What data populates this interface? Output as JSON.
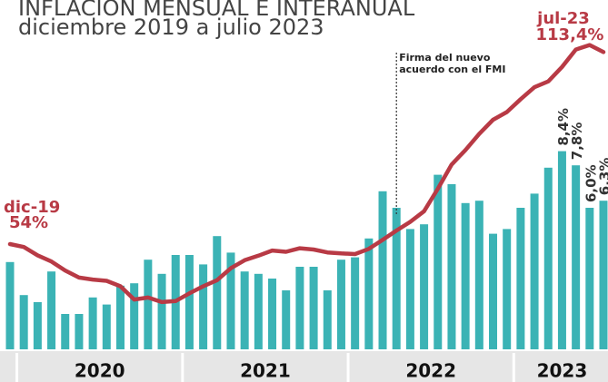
{
  "chart_data": {
    "type": "bar_line",
    "title": "INFLACIÓN MENSUAL E INTERANUAL",
    "subtitle": "diciembre 2019 a julio 2023",
    "years": [
      "2020",
      "2021",
      "2022",
      "2023"
    ],
    "annotation": "Firma del nuevo acuerdo con el FMI",
    "series": [
      {
        "name": "mensual",
        "color": "#3bb3b5",
        "values": [
          3.7,
          2.3,
          2.0,
          3.3,
          1.5,
          1.5,
          2.2,
          1.9,
          2.7,
          2.8,
          3.8,
          3.2,
          4.0,
          4.0,
          3.6,
          4.8,
          4.1,
          3.3,
          3.2,
          3.0,
          2.5,
          3.5,
          3.5,
          2.5,
          3.8,
          3.9,
          4.7,
          6.7,
          6.0,
          5.1,
          5.3,
          7.4,
          7.0,
          6.2,
          6.3,
          4.9,
          5.1,
          6.0,
          6.6,
          7.7,
          8.4,
          7.8,
          6.0,
          6.3
        ],
        "end_labels": [
          "8,4%",
          "7,8%",
          "6,0%",
          "6,3%"
        ]
      },
      {
        "name": "interanual",
        "color": "#b83a45",
        "values": [
          53.8,
          52.9,
          50.3,
          48.4,
          45.6,
          43.4,
          42.8,
          42.4,
          40.7,
          36.6,
          37.2,
          35.8,
          36.1,
          38.5,
          40.7,
          42.6,
          46.3,
          48.8,
          50.2,
          51.8,
          51.4,
          52.5,
          52.1,
          51.2,
          50.9,
          50.7,
          52.3,
          55.1,
          58.0,
          60.7,
          64.0,
          71.0,
          78.5,
          83.0,
          88.0,
          92.4,
          94.8,
          98.8,
          102.5,
          104.3,
          108.8,
          114.2,
          115.6,
          113.4
        ],
        "first_label": {
          "date": "dic-19",
          "label": "54%"
        },
        "last_label": {
          "date": "jul-23",
          "label": "113,4%"
        }
      }
    ]
  }
}
